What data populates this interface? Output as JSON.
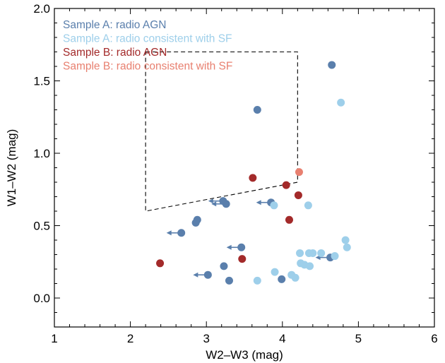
{
  "chart_data": {
    "type": "scatter",
    "xlabel": "W2–W3 (mag)",
    "ylabel": "W1–W2 (mag)",
    "xlim": [
      1,
      6
    ],
    "ylim": [
      -0.2,
      2.0
    ],
    "xticks": [
      "1",
      "2",
      "3",
      "4",
      "5",
      "6"
    ],
    "xtick_values": [
      1,
      2,
      3,
      4,
      5,
      6
    ],
    "yticks": [
      "0.0",
      "0.5",
      "1.0",
      "1.5",
      "2.0"
    ],
    "ytick_values": [
      0.0,
      0.5,
      1.0,
      1.5,
      2.0
    ],
    "grid": false,
    "legend_position": "top-left",
    "selection_box": [
      [
        2.2,
        1.7
      ],
      [
        4.2,
        1.7
      ],
      [
        4.2,
        0.8
      ],
      [
        2.2,
        0.6
      ],
      [
        2.2,
        1.7
      ]
    ],
    "series": [
      {
        "name": "Sample A: radio AGN",
        "color": "#5a7fac",
        "points": [
          {
            "x": 4.65,
            "y": 1.61
          },
          {
            "x": 3.67,
            "y": 1.3
          },
          {
            "x": 3.22,
            "y": 0.67
          },
          {
            "x": 3.26,
            "y": 0.65
          },
          {
            "x": 3.85,
            "y": 0.66
          },
          {
            "x": 2.88,
            "y": 0.54
          },
          {
            "x": 2.86,
            "y": 0.52
          },
          {
            "x": 2.67,
            "y": 0.45
          },
          {
            "x": 3.46,
            "y": 0.35
          },
          {
            "x": 4.63,
            "y": 0.28
          },
          {
            "x": 3.23,
            "y": 0.22
          },
          {
            "x": 3.02,
            "y": 0.16
          },
          {
            "x": 3.3,
            "y": 0.12
          },
          {
            "x": 3.99,
            "y": 0.13
          }
        ],
        "upper_limit_arrows": [
          {
            "x": 3.22,
            "y": 0.67
          },
          {
            "x": 3.26,
            "y": 0.65
          },
          {
            "x": 3.85,
            "y": 0.66
          },
          {
            "x": 2.67,
            "y": 0.45
          },
          {
            "x": 3.46,
            "y": 0.35
          },
          {
            "x": 4.63,
            "y": 0.28
          },
          {
            "x": 3.02,
            "y": 0.16
          }
        ]
      },
      {
        "name": "Sample A: radio consistent with SF",
        "color": "#9ecfea",
        "points": [
          {
            "x": 4.77,
            "y": 1.35
          },
          {
            "x": 3.89,
            "y": 0.64
          },
          {
            "x": 4.34,
            "y": 0.64
          },
          {
            "x": 4.83,
            "y": 0.4
          },
          {
            "x": 4.85,
            "y": 0.35
          },
          {
            "x": 4.23,
            "y": 0.31
          },
          {
            "x": 4.35,
            "y": 0.31
          },
          {
            "x": 4.4,
            "y": 0.31
          },
          {
            "x": 4.51,
            "y": 0.31
          },
          {
            "x": 4.69,
            "y": 0.29
          },
          {
            "x": 4.24,
            "y": 0.24
          },
          {
            "x": 4.29,
            "y": 0.23
          },
          {
            "x": 4.36,
            "y": 0.22
          },
          {
            "x": 3.9,
            "y": 0.18
          },
          {
            "x": 4.12,
            "y": 0.16
          },
          {
            "x": 4.17,
            "y": 0.14
          },
          {
            "x": 3.67,
            "y": 0.12
          }
        ]
      },
      {
        "name": "Sample B: radio AGN",
        "color": "#a32a2a",
        "points": [
          {
            "x": 3.61,
            "y": 0.83
          },
          {
            "x": 4.05,
            "y": 0.78
          },
          {
            "x": 4.21,
            "y": 0.71
          },
          {
            "x": 4.09,
            "y": 0.54
          },
          {
            "x": 2.39,
            "y": 0.24
          },
          {
            "x": 3.47,
            "y": 0.27
          }
        ]
      },
      {
        "name": "Sample B: radio consistent with SF",
        "color": "#e88070",
        "points": [
          {
            "x": 4.22,
            "y": 0.87
          }
        ]
      }
    ]
  }
}
